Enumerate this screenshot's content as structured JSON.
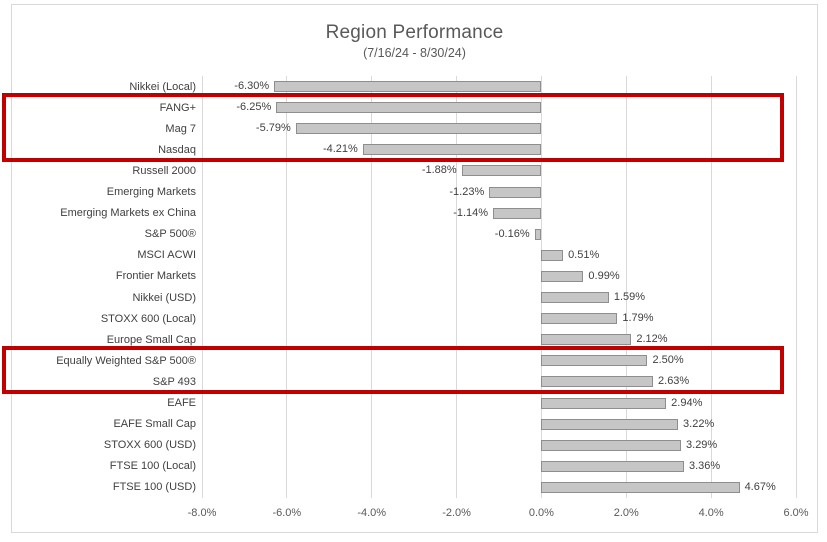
{
  "chart": {
    "title": "Region Performance",
    "subtitle": "(7/16/24 - 8/30/24)"
  },
  "chart_data": {
    "type": "bar",
    "orientation": "horizontal",
    "title": "Region Performance",
    "subtitle": "(7/16/24 - 8/30/24)",
    "xlabel": "",
    "ylabel": "",
    "xlim": [
      -8,
      6
    ],
    "x_ticks": [
      -8,
      -6,
      -4,
      -2,
      0,
      2,
      4,
      6
    ],
    "x_tick_labels": [
      "-8.0%",
      "-6.0%",
      "-4.0%",
      "-2.0%",
      "0.0%",
      "2.0%",
      "4.0%",
      "6.0%"
    ],
    "grid": "vertical-gridlines",
    "legend": "none",
    "categories": [
      "Nikkei (Local)",
      "FANG+",
      "Mag 7",
      "Nasdaq",
      "Russell 2000",
      "Emerging Markets",
      "Emerging Markets ex China",
      "S&P 500®",
      "MSCI ACWI",
      "Frontier Markets",
      "Nikkei (USD)",
      "STOXX 600 (Local)",
      "Europe Small Cap",
      "Equally Weighted S&P 500®",
      "S&P 493",
      "EAFE",
      "EAFE Small Cap",
      "STOXX 600 (USD)",
      "FTSE 100 (Local)",
      "FTSE 100 (USD)"
    ],
    "values": [
      -6.3,
      -6.25,
      -5.79,
      -4.21,
      -1.88,
      -1.23,
      -1.14,
      -0.16,
      0.51,
      0.99,
      1.59,
      1.79,
      2.12,
      2.5,
      2.63,
      2.94,
      3.22,
      3.29,
      3.36,
      4.67
    ],
    "value_labels": [
      "-6.30%",
      "-6.25%",
      "-5.79%",
      "-4.21%",
      "-1.88%",
      "-1.23%",
      "-1.14%",
      "-0.16%",
      "0.51%",
      "0.99%",
      "1.59%",
      "1.79%",
      "2.12%",
      "2.50%",
      "2.63%",
      "2.94%",
      "3.22%",
      "3.29%",
      "3.36%",
      "4.67%"
    ],
    "colors": {
      "bar_fill": "#c6c6c6",
      "bar_border": "#8e8e8e",
      "gridline": "#d9d9d9",
      "frame_border": "#d9d9d9",
      "title_text": "#595959",
      "label_text": "#404040",
      "tick_text": "#595959",
      "highlight_border": "#c00000"
    },
    "highlighted_groups": [
      {
        "categories": [
          "FANG+",
          "Mag 7",
          "Nasdaq"
        ],
        "rows": [
          1,
          2,
          3
        ]
      },
      {
        "categories": [
          "Equally Weighted S&P 500®",
          "S&P 493"
        ],
        "rows": [
          13,
          14
        ]
      }
    ]
  }
}
